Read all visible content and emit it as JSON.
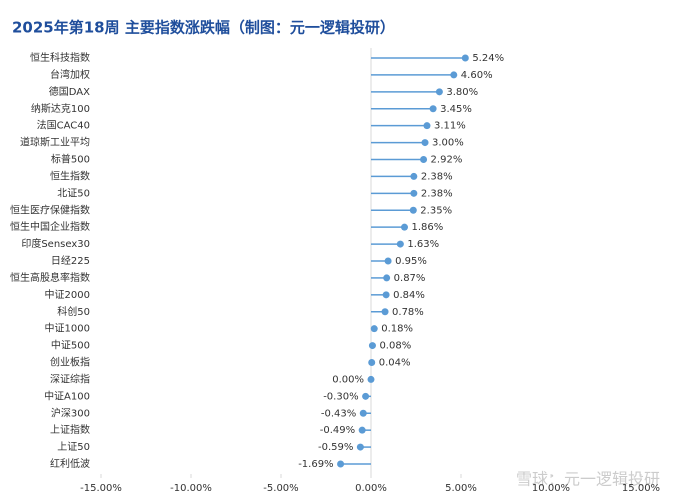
{
  "chart_data": {
    "type": "lollipop",
    "title": "2025年第18周 主要指数涨跌幅（制图：元一逻辑投研）",
    "watermark": "雪球：元一逻辑投研",
    "categories": [
      "恒生科技指数",
      "台湾加权",
      "德国DAX",
      "纳斯达克100",
      "法国CAC40",
      "道琼斯工业平均",
      "标普500",
      "恒生指数",
      "北证50",
      "恒生医疗保健指数",
      "恒生中国企业指数",
      "印度Sensex30",
      "日经225",
      "恒生高股息率指数",
      "中证2000",
      "科创50",
      "中证1000",
      "中证500",
      "创业板指",
      "深证综指",
      "中证A100",
      "沪深300",
      "上证指数",
      "上证50",
      "红利低波"
    ],
    "values": [
      5.24,
      4.6,
      3.8,
      3.45,
      3.11,
      3.0,
      2.92,
      2.38,
      2.38,
      2.35,
      1.86,
      1.63,
      0.95,
      0.87,
      0.84,
      0.78,
      0.18,
      0.08,
      0.04,
      0.0,
      -0.3,
      -0.43,
      -0.49,
      -0.59,
      -1.69
    ],
    "value_labels": [
      "5.24%",
      "4.60%",
      "3.80%",
      "3.45%",
      "3.11%",
      "3.00%",
      "2.92%",
      "2.38%",
      "2.38%",
      "2.35%",
      "1.86%",
      "1.63%",
      "0.95%",
      "0.87%",
      "0.84%",
      "0.78%",
      "0.18%",
      "0.08%",
      "0.04%",
      "0.00%",
      "-0.30%",
      "-0.43%",
      "-0.49%",
      "-0.59%",
      "-1.69%"
    ],
    "color": "#5b9bd5",
    "xlim": [
      -15,
      15
    ],
    "xticks": [
      {
        "value": -15,
        "label": "-15.00%"
      },
      {
        "value": -10,
        "label": "-10.00%"
      },
      {
        "value": -5,
        "label": "-5.00%"
      },
      {
        "value": 0,
        "label": "0.00%"
      },
      {
        "value": 5,
        "label": "5.00%"
      },
      {
        "value": 10,
        "label": "10.00%"
      },
      {
        "value": 15,
        "label": "15.00%"
      }
    ]
  }
}
